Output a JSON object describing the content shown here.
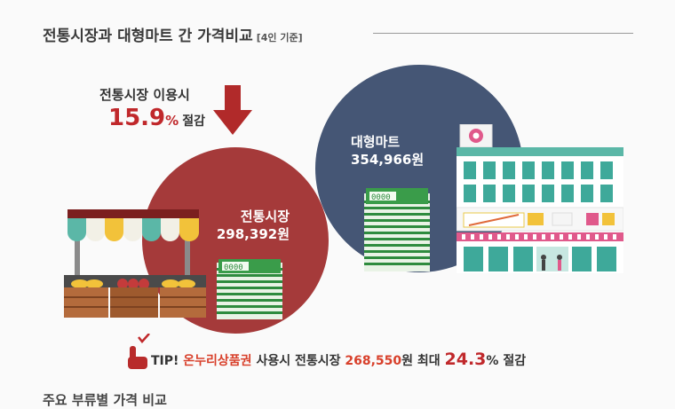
{
  "title": {
    "main": "전통시장과 대형마트 간 가격비교",
    "sub": "[4인 기준]"
  },
  "promo": {
    "line1": "전통시장 이용시",
    "pct_number": "15.9",
    "pct_symbol": "%",
    "pct_text": "절감"
  },
  "market": {
    "name": "전통시장",
    "price": "298,392원"
  },
  "mart": {
    "name": "대형마트",
    "price": "354,966원"
  },
  "money_label": "0000",
  "tip": {
    "prefix": "TIP!",
    "voucher": "온누리상품권",
    "mid": "사용시 전통시장",
    "price": "268,550",
    "unit": "원 최대",
    "pct": "24.3",
    "pct_symbol": "%",
    "suffix": "절감"
  },
  "next_section_partial": "주요 부류별 가격 비교",
  "colors": {
    "accent_red": "#c0282b",
    "market_circle": "#a53a3a",
    "mart_circle": "#455675",
    "money_green": "#2e8b3e"
  }
}
